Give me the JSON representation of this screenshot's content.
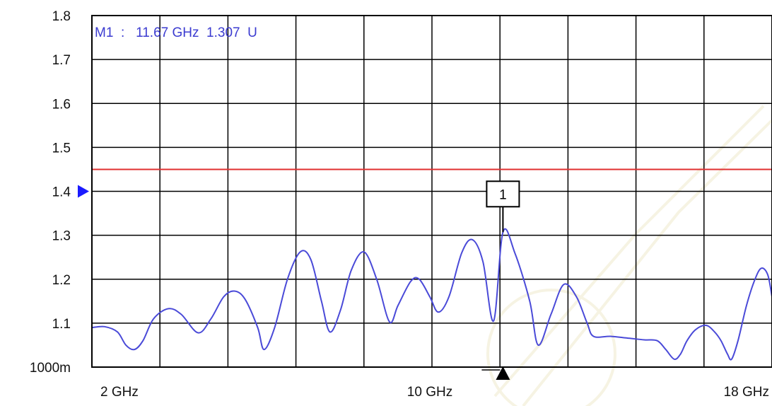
{
  "chart_data": {
    "type": "line",
    "title": "",
    "xlabel": "",
    "ylabel": "",
    "x_unit": "GHz",
    "xlim": [
      2,
      18
    ],
    "ylim": [
      1.0,
      1.8
    ],
    "grid": true,
    "x_tick_labels": [
      {
        "value": 2,
        "label": "2 GHz"
      },
      {
        "value": 10,
        "label": "10 GHz"
      },
      {
        "value": 18,
        "label": "18 GHz"
      }
    ],
    "y_tick_labels": [
      {
        "value": 1.0,
        "label": "1000m"
      },
      {
        "value": 1.1,
        "label": "1.1"
      },
      {
        "value": 1.2,
        "label": "1.2"
      },
      {
        "value": 1.3,
        "label": "1.3"
      },
      {
        "value": 1.4,
        "label": "1.4"
      },
      {
        "value": 1.5,
        "label": "1.5"
      },
      {
        "value": 1.6,
        "label": "1.6"
      },
      {
        "value": 1.7,
        "label": "1.7"
      },
      {
        "value": 1.8,
        "label": "1.8"
      }
    ],
    "reference_line": {
      "value": 1.45,
      "color": "#e03030"
    },
    "reference_level": 1.4,
    "marker": {
      "id": "1",
      "x": 11.67,
      "y": 1.307,
      "readout": "M1  :   11.67 GHz  1.307  U"
    },
    "series": [
      {
        "color": "#4a4ad8",
        "points": [
          [
            2.0,
            1.09
          ],
          [
            2.3,
            1.092
          ],
          [
            2.6,
            1.08
          ],
          [
            2.8,
            1.05
          ],
          [
            3.0,
            1.04
          ],
          [
            3.2,
            1.06
          ],
          [
            3.45,
            1.11
          ],
          [
            3.8,
            1.133
          ],
          [
            4.1,
            1.12
          ],
          [
            4.5,
            1.078
          ],
          [
            4.8,
            1.11
          ],
          [
            5.1,
            1.16
          ],
          [
            5.35,
            1.173
          ],
          [
            5.6,
            1.155
          ],
          [
            5.9,
            1.09
          ],
          [
            6.05,
            1.04
          ],
          [
            6.3,
            1.09
          ],
          [
            6.6,
            1.2
          ],
          [
            6.9,
            1.262
          ],
          [
            7.15,
            1.245
          ],
          [
            7.4,
            1.15
          ],
          [
            7.6,
            1.08
          ],
          [
            7.85,
            1.13
          ],
          [
            8.1,
            1.22
          ],
          [
            8.4,
            1.262
          ],
          [
            8.7,
            1.2
          ],
          [
            9.0,
            1.103
          ],
          [
            9.2,
            1.14
          ],
          [
            9.5,
            1.195
          ],
          [
            9.7,
            1.2
          ],
          [
            9.95,
            1.16
          ],
          [
            10.15,
            1.125
          ],
          [
            10.4,
            1.16
          ],
          [
            10.7,
            1.26
          ],
          [
            10.95,
            1.29
          ],
          [
            11.2,
            1.24
          ],
          [
            11.45,
            1.105
          ],
          [
            11.67,
            1.307
          ],
          [
            11.95,
            1.26
          ],
          [
            12.3,
            1.15
          ],
          [
            12.5,
            1.05
          ],
          [
            12.8,
            1.12
          ],
          [
            13.1,
            1.188
          ],
          [
            13.4,
            1.16
          ],
          [
            13.65,
            1.1
          ],
          [
            13.8,
            1.07
          ],
          [
            14.2,
            1.07
          ],
          [
            14.6,
            1.066
          ],
          [
            15.0,
            1.062
          ],
          [
            15.3,
            1.06
          ],
          [
            15.5,
            1.04
          ],
          [
            15.7,
            1.018
          ],
          [
            15.85,
            1.03
          ],
          [
            16.0,
            1.06
          ],
          [
            16.2,
            1.085
          ],
          [
            16.45,
            1.095
          ],
          [
            16.65,
            1.08
          ],
          [
            16.8,
            1.06
          ],
          [
            16.95,
            1.03
          ],
          [
            17.05,
            1.018
          ],
          [
            17.2,
            1.06
          ],
          [
            17.4,
            1.14
          ],
          [
            17.6,
            1.2
          ],
          [
            17.75,
            1.225
          ],
          [
            17.9,
            1.21
          ],
          [
            18.0,
            1.16
          ]
        ]
      }
    ]
  }
}
